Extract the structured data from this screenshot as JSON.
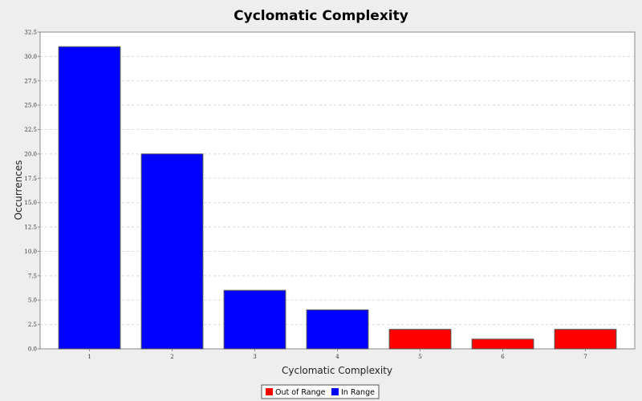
{
  "chart_data": {
    "type": "bar",
    "title": "Cyclomatic Complexity",
    "xlabel": "Cyclomatic Complexity",
    "ylabel": "Occurrences",
    "categories": [
      "1",
      "2",
      "3",
      "4",
      "5",
      "6",
      "7"
    ],
    "values": [
      31,
      20,
      6,
      4,
      2,
      1,
      2
    ],
    "series_membership": [
      "In Range",
      "In Range",
      "In Range",
      "In Range",
      "Out of Range",
      "Out of Range",
      "Out of Range"
    ],
    "ylim": [
      0,
      32.5
    ],
    "yticks": [
      "0.0",
      "2.5",
      "5.0",
      "7.5",
      "10.0",
      "12.5",
      "15.0",
      "17.5",
      "20.0",
      "22.5",
      "25.0",
      "27.5",
      "30.0",
      "32.5"
    ],
    "ytick_values": [
      0,
      2.5,
      5,
      7.5,
      10,
      12.5,
      15,
      17.5,
      20,
      22.5,
      25,
      27.5,
      30,
      32.5
    ],
    "grid": true,
    "legend": {
      "placement": "bottom-center",
      "entries": [
        {
          "name": "Out of Range",
          "color": "#ff0000"
        },
        {
          "name": "In Range",
          "color": "#0000ff"
        }
      ]
    },
    "colors": {
      "In Range": "#0000ff",
      "Out of Range": "#ff0000",
      "plot_background": "#ffffff",
      "page_background": "#eeeeee"
    }
  }
}
